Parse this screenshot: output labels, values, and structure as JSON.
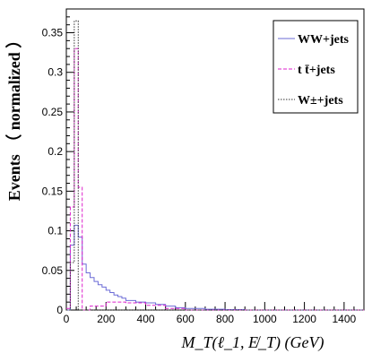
{
  "chart_data": {
    "type": "line",
    "xlabel": "M_T(ℓ_1, E̸_T) (GeV)",
    "ylabel": "Events （ normalized ）",
    "xlim": [
      0,
      1500
    ],
    "ylim": [
      0,
      0.38
    ],
    "x_ticks": [
      0,
      200,
      400,
      600,
      800,
      1000,
      1200,
      1400
    ],
    "y_ticks": [
      0,
      0.05,
      0.1,
      0.15,
      0.2,
      0.25,
      0.3,
      0.35
    ],
    "bin_width": 20,
    "legend_position": "top-right",
    "series": [
      {
        "name": "WW+jets",
        "color": "#6b6bd6",
        "style": "solid",
        "bin_edges": [
          0,
          20,
          40,
          60,
          80,
          100,
          120,
          140,
          160,
          180,
          200,
          220,
          240,
          260,
          280,
          300,
          350,
          400,
          450,
          500,
          550,
          600,
          700,
          800,
          900,
          1000,
          1500
        ],
        "values": [
          0.0,
          0.082,
          0.107,
          0.092,
          0.058,
          0.047,
          0.041,
          0.036,
          0.032,
          0.029,
          0.025,
          0.022,
          0.019,
          0.017,
          0.015,
          0.012,
          0.01,
          0.009,
          0.007,
          0.005,
          0.003,
          0.002,
          0.001,
          0.0005,
          0.0,
          0.0
        ]
      },
      {
        "name": "t t̄+jets",
        "color": "#dd22cc",
        "style": "dashed",
        "bin_edges": [
          0,
          20,
          40,
          60,
          80,
          100,
          120,
          200,
          300,
          400,
          500,
          600,
          1500
        ],
        "values": [
          0.002,
          0.13,
          0.33,
          0.155,
          0.0,
          0.0,
          0.005,
          0.01,
          0.009,
          0.006,
          0.002,
          0.0
        ]
      },
      {
        "name": "W±+jets",
        "color": "#333333",
        "style": "dotted",
        "bin_edges": [
          0,
          20,
          40,
          60,
          80,
          100,
          1500
        ],
        "values": [
          0.0,
          0.06,
          0.365,
          0.0,
          0.0,
          0.0
        ]
      }
    ]
  }
}
